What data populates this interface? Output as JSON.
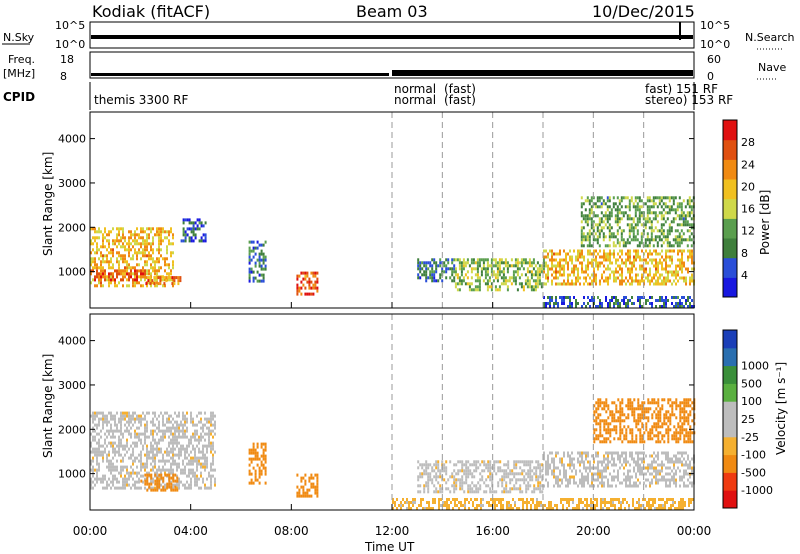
{
  "header": {
    "station": "Kodiak (fitACF)",
    "beam": "Beam 03",
    "date": "10/Dec/2015"
  },
  "top_panels": {
    "nsky_label": "N.Sky",
    "nsky_ticks": [
      "10^5",
      "10^0"
    ],
    "nsearch_label": "N.Search",
    "nsearch_ticks": [
      "10^5",
      "10^0"
    ],
    "freq_label_1": "Freq.",
    "freq_label_2": "[MHz]",
    "freq_ticks": [
      "18",
      "8"
    ],
    "nave_label": "Nave",
    "nave_ticks": [
      "60",
      "0"
    ],
    "cpid_label": "CPID"
  },
  "cpid_text": {
    "themis": "themis 3300 RF",
    "normal_1": "normal",
    "normal_2": "normal",
    "overlap_1": "(fast)",
    "overlap_2": "(fast)",
    "stereo_1": "stereo) 153 RF",
    "stereo_2": "fast) 151 RF"
  },
  "colors": {
    "power_scale": [
      "#1818e0",
      "#2a4ed8",
      "#3f7f3c",
      "#5a9e4e",
      "#cfd84a",
      "#f0c020",
      "#f08a12",
      "#e05010",
      "#e01010"
    ],
    "velocity_scale": [
      "#e01010",
      "#ef3a10",
      "#f08a12",
      "#f5b030",
      "#bdbdbd",
      "#bdbdbd",
      "#5ab040",
      "#3a8f3a",
      "#2a6fb0",
      "#1b3fb8"
    ]
  },
  "chart_data": [
    {
      "type": "heatmap",
      "title": "Power",
      "xlabel": "Time UT",
      "ylabel": "Slant Range [km]",
      "x_ticks": [
        "00:00",
        "04:00",
        "08:00",
        "12:00",
        "16:00",
        "20:00",
        "00:00"
      ],
      "y_ticks": [
        1000,
        2000,
        3000,
        4000
      ],
      "ylim": [
        180,
        4600
      ],
      "colorbar_label": "Power [dB]",
      "colorbar_ticks": [
        4,
        8,
        12,
        16,
        20,
        24,
        28
      ],
      "colorbar_range": [
        0,
        32
      ],
      "regions": [
        {
          "t0": 0.0,
          "t1": 3.3,
          "r0": 700,
          "r1": 2000,
          "level": 20
        },
        {
          "t0": 0.0,
          "t1": 2.2,
          "r0": 800,
          "r1": 1050,
          "level": 27
        },
        {
          "t0": 2.2,
          "t1": 3.6,
          "r0": 700,
          "r1": 900,
          "level": 24
        },
        {
          "t0": 3.6,
          "t1": 4.6,
          "r0": 1700,
          "r1": 2200,
          "level": 6
        },
        {
          "t0": 6.3,
          "t1": 7.0,
          "r0": 800,
          "r1": 1700,
          "level": 8
        },
        {
          "t0": 8.2,
          "t1": 9.0,
          "r0": 500,
          "r1": 1000,
          "level": 26
        },
        {
          "t0": 13.0,
          "t1": 14.5,
          "r0": 800,
          "r1": 1300,
          "level": 8
        },
        {
          "t0": 14.5,
          "t1": 18.0,
          "r0": 600,
          "r1": 1300,
          "level": 14
        },
        {
          "t0": 18.0,
          "t1": 24.0,
          "r0": 700,
          "r1": 1500,
          "level": 20
        },
        {
          "t0": 19.5,
          "t1": 24.0,
          "r0": 1600,
          "r1": 2700,
          "level": 12
        },
        {
          "t0": 18.0,
          "t1": 24.0,
          "r0": 180,
          "r1": 450,
          "level": 6
        }
      ]
    },
    {
      "type": "heatmap",
      "title": "Velocity",
      "xlabel": "Time UT",
      "ylabel": "Slant Range [km]",
      "x_ticks": [
        "00:00",
        "04:00",
        "08:00",
        "12:00",
        "16:00",
        "20:00",
        "00:00"
      ],
      "y_ticks": [
        1000,
        2000,
        3000,
        4000
      ],
      "ylim": [
        180,
        4600
      ],
      "colorbar_label": "Velocity [m s⁻¹]",
      "colorbar_ticks": [
        -1000,
        -500,
        -100,
        -25,
        25,
        100,
        500,
        1000
      ],
      "regions": [
        {
          "t0": 0.0,
          "t1": 5.0,
          "r0": 700,
          "r1": 2400,
          "level": 0
        },
        {
          "t0": 2.0,
          "t1": 3.5,
          "r0": 600,
          "r1": 1000,
          "level": -300
        },
        {
          "t0": 6.3,
          "t1": 7.0,
          "r0": 800,
          "r1": 1700,
          "level": -150
        },
        {
          "t0": 8.2,
          "t1": 9.0,
          "r0": 500,
          "r1": 1000,
          "level": -150
        },
        {
          "t0": 13.0,
          "t1": 18.0,
          "r0": 600,
          "r1": 1300,
          "level": 0
        },
        {
          "t0": 18.0,
          "t1": 24.0,
          "r0": 700,
          "r1": 1500,
          "level": 0
        },
        {
          "t0": 20.0,
          "t1": 24.0,
          "r0": 1700,
          "r1": 2700,
          "level": -300
        },
        {
          "t0": 12.0,
          "t1": 24.0,
          "r0": 180,
          "r1": 450,
          "level": -50
        }
      ]
    }
  ]
}
